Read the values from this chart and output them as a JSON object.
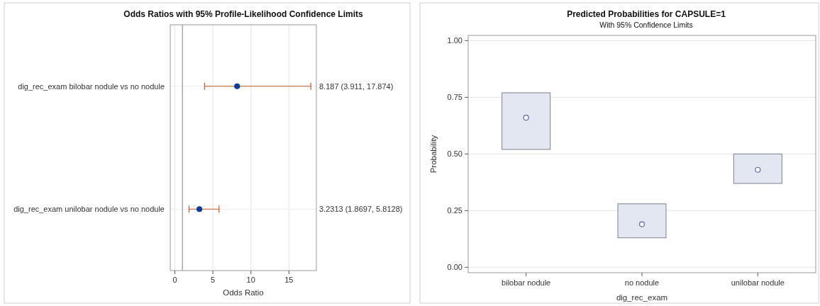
{
  "chart_data": [
    {
      "type": "scatter",
      "title": "Odds Ratios with 95% Profile-Likelihood Confidence Limits",
      "xlabel": "Odds Ratio",
      "orientation": "horizontal",
      "marker": "circle",
      "grid": true,
      "categories": [
        "dig_rec_exam bilobar nodule  vs no nodule",
        "dig_rec_exam unilobar nodule vs no nodule"
      ],
      "series": [
        {
          "color": "#0b3b9c",
          "values": [
            8.187,
            3.2313
          ],
          "errors": [
            [
              3.911,
              17.874
            ],
            [
              1.8697,
              5.8128
            ]
          ]
        }
      ],
      "annotations": [
        "8.187 (3.911, 17.874)",
        "3.2313 (1.8697, 5.8128)"
      ],
      "xlim": [
        -0.6,
        18.6
      ],
      "xticks": [
        0,
        5,
        10,
        15
      ],
      "ref_lines": [
        {
          "axis": "x",
          "value": 1,
          "color": "#808080"
        }
      ]
    },
    {
      "type": "bar",
      "title": "Predicted Probabilities for CAPSULE=1",
      "subtitle": "With 95% Confidence Limits",
      "xlabel": "dig_rec_exam",
      "ylabel": "Probability",
      "marker": "circle",
      "grid": "y",
      "categories": [
        "bilobar nodule",
        "no nodule",
        "unilobar nodule"
      ],
      "series": [
        {
          "color": "#e3e7f1",
          "base": [
            0.52,
            0.13,
            0.37
          ],
          "values": [
            0.25,
            0.15,
            0.13
          ]
        },
        {
          "type": "scatter",
          "color": "#5a6aae",
          "x": [
            "bilobar nodule",
            "no nodule",
            "unilobar nodule"
          ],
          "values": [
            0.66,
            0.19,
            0.43
          ]
        }
      ],
      "ylim": [
        -0.024,
        1.023
      ],
      "yticks": [
        {
          "value": 0,
          "label": "0.00"
        },
        {
          "value": 0.25,
          "label": "0.25"
        },
        {
          "value": 0.5,
          "label": "0.50"
        },
        {
          "value": 0.75,
          "label": "0.75"
        },
        {
          "value": 1,
          "label": "1.00"
        }
      ]
    }
  ]
}
